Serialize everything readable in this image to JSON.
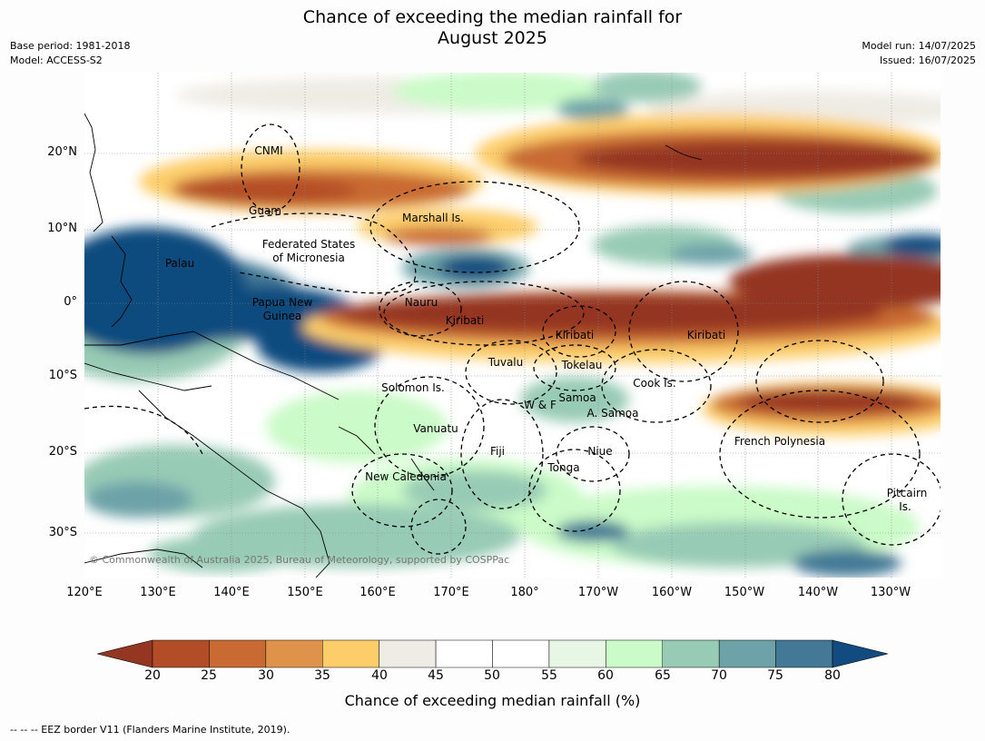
{
  "header": {
    "title_line1": "Chance of exceeding the median rainfall for",
    "title_line2": "August 2025",
    "base_period": "Base period: 1981-2018",
    "model": "Model: ACCESS-S2",
    "model_run": "Model run: 14/07/2025",
    "issued": "Issued: 16/07/2025"
  },
  "axes": {
    "lat_ticks": [
      "20°N",
      "10°N",
      "0°",
      "10°S",
      "20°S",
      "30°S"
    ],
    "lon_ticks": [
      "120°E",
      "130°E",
      "140°E",
      "150°E",
      "160°E",
      "170°E",
      "180°",
      "170°W",
      "160°W",
      "150°W",
      "140°W",
      "130°W"
    ]
  },
  "places": [
    {
      "name": "CNMI"
    },
    {
      "name": "Guam"
    },
    {
      "name": "Marshall Is."
    },
    {
      "name": "Federated States"
    },
    {
      "name": "of Micronesia"
    },
    {
      "name": "Palau"
    },
    {
      "name": "Papua New"
    },
    {
      "name": "Guinea"
    },
    {
      "name": "Nauru"
    },
    {
      "name": "Kiribati"
    },
    {
      "name": "Kiribati"
    },
    {
      "name": "Kiribati"
    },
    {
      "name": "Tuvalu"
    },
    {
      "name": "Tokelau"
    },
    {
      "name": "Cook Is."
    },
    {
      "name": "Solomon Is."
    },
    {
      "name": "Samoa"
    },
    {
      "name": "W & F"
    },
    {
      "name": "A. Samoa"
    },
    {
      "name": "Vanuatu"
    },
    {
      "name": "Fiji"
    },
    {
      "name": "Niue"
    },
    {
      "name": "French Polynesia"
    },
    {
      "name": "Tonga"
    },
    {
      "name": "New Caledonia"
    },
    {
      "name": "Pitcairn"
    },
    {
      "name": "Is."
    }
  ],
  "colorbar": {
    "title": "Chance of exceeding median rainfall (%)",
    "labels": [
      "20",
      "25",
      "30",
      "35",
      "40",
      "45",
      "50",
      "55",
      "60",
      "65",
      "70",
      "75",
      "80"
    ],
    "colors": [
      "#943621",
      "#b34d28",
      "#c96a33",
      "#df924a",
      "#fdcd6a",
      "#efece5",
      "#ffffff",
      "#ffffff",
      "#e8f6e6",
      "#cbfbc8",
      "#98cbb5",
      "#6da3a8",
      "#437996",
      "#114b7f"
    ]
  },
  "copyright": "© Commonwealth of Australia 2025, Bureau of Meteorology, supported by COSPPac",
  "footer": "-- -- -- EEZ border V11 (Flanders Marine Institute, 2019)."
}
